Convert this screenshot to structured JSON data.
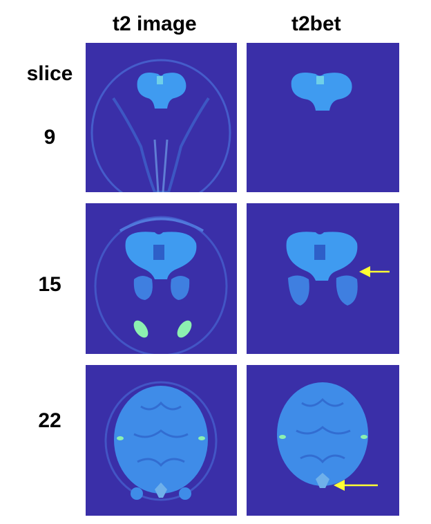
{
  "columns": {
    "left": "t2 image",
    "right": "t2bet"
  },
  "rows": {
    "label": "slice",
    "slices": [
      "9",
      "15",
      "22"
    ]
  },
  "colors": {
    "background": "#3a2fa8",
    "tissue": "#3f9bf0",
    "highlight": "#8cf0b0",
    "arrow": "#ffff33"
  }
}
